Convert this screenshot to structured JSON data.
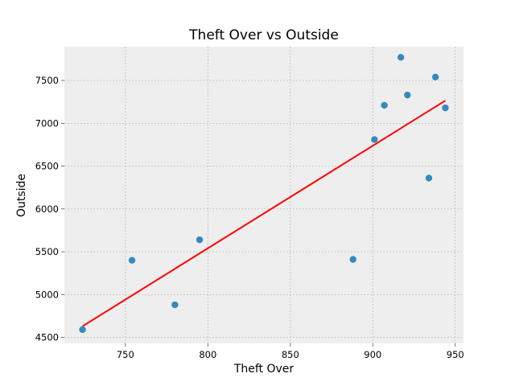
{
  "chart_data": {
    "type": "scatter",
    "title": "Theft Over vs Outside",
    "xlabel": "Theft Over",
    "ylabel": "Outside",
    "xlim": [
      713,
      955
    ],
    "ylim": [
      4430,
      7895
    ],
    "xticks": [
      750,
      800,
      850,
      900,
      950
    ],
    "yticks": [
      4500,
      5000,
      5500,
      6000,
      6500,
      7000,
      7500
    ],
    "grid": true,
    "points": [
      {
        "x": 724,
        "y": 4590
      },
      {
        "x": 754,
        "y": 5400
      },
      {
        "x": 780,
        "y": 4880
      },
      {
        "x": 795,
        "y": 5640
      },
      {
        "x": 888,
        "y": 5410
      },
      {
        "x": 901,
        "y": 6810
      },
      {
        "x": 907,
        "y": 7210
      },
      {
        "x": 917,
        "y": 7770
      },
      {
        "x": 921,
        "y": 7330
      },
      {
        "x": 934,
        "y": 6360
      },
      {
        "x": 938,
        "y": 7540
      },
      {
        "x": 944,
        "y": 7180
      }
    ],
    "fit_line": {
      "x": [
        724,
        944
      ],
      "y": [
        4630,
        7265
      ]
    },
    "colors": {
      "points": "#348ABD",
      "fit_line": "#FF0000",
      "plot_background": "#EEEEEE",
      "grid": "#B2B2B2"
    }
  }
}
